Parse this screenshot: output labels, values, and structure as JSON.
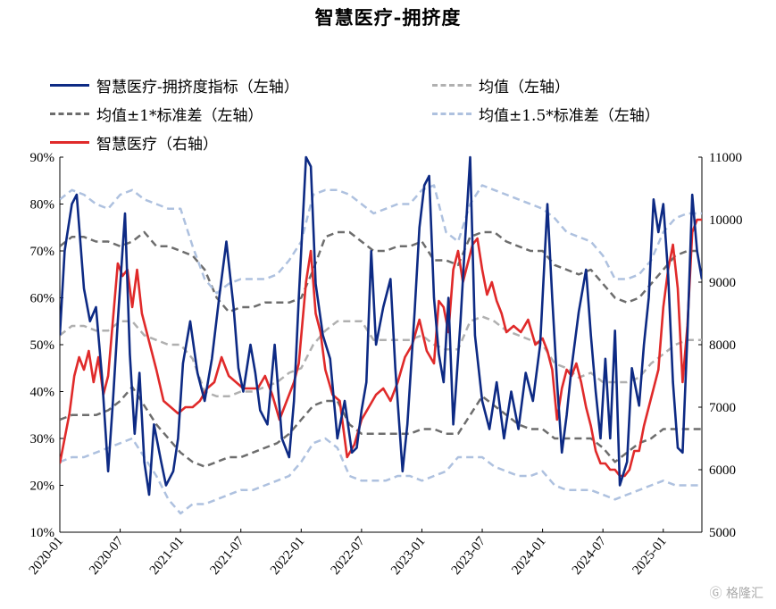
{
  "title": "智慧医疗-拥挤度",
  "watermark": "格隆汇",
  "colors": {
    "index": "#0d2a84",
    "mean": "#b0b0b0",
    "band1": "#6d6d6d",
    "band15": "#aec1df",
    "price": "#e02a2a"
  },
  "legend": [
    {
      "label": "智慧医疗-拥挤度指标（左轴）",
      "color": "#0d2a84",
      "dash": "none",
      "key": "index"
    },
    {
      "label": "均值（左轴）",
      "color": "#b0b0b0",
      "dash": "8,5",
      "key": "mean"
    },
    {
      "label": "均值±1*标准差（左轴）",
      "color": "#6d6d6d",
      "dash": "8,5",
      "key": "band1"
    },
    {
      "label": "均值±1.5*标准差（左轴）",
      "color": "#aec1df",
      "dash": "8,5",
      "key": "band15"
    },
    {
      "label": "智慧医疗（右轴）",
      "color": "#e02a2a",
      "dash": "none",
      "key": "price"
    }
  ],
  "chart_data": {
    "type": "line",
    "title": "智慧医疗-拥挤度",
    "x_tick_labels": [
      "2020-01",
      "2020-07",
      "2021-01",
      "2021-07",
      "2022-01",
      "2022-07",
      "2023-01",
      "2023-07",
      "2024-01",
      "2024-07",
      "2025-01"
    ],
    "y_left": {
      "min": 0.1,
      "max": 0.9,
      "ticks": [
        "90%",
        "80%",
        "70%",
        "60%",
        "50%",
        "40%",
        "30%",
        "20%",
        "10%"
      ]
    },
    "y_right": {
      "min": 5000,
      "max": 11000,
      "ticks": [
        "11000",
        "10000",
        "9000",
        "8000",
        "7000",
        "6000",
        "5000"
      ]
    },
    "grid": false,
    "legend_position": "top",
    "series": [
      {
        "name": "智慧医疗-拥挤度指标（左轴）",
        "axis": "left",
        "style": "solid",
        "x": [
          2020.0,
          2020.04,
          2020.1,
          2020.14,
          2020.2,
          2020.25,
          2020.3,
          2020.35,
          2020.4,
          2020.44,
          2020.48,
          2020.54,
          2020.58,
          2020.62,
          2020.66,
          2020.7,
          2020.74,
          2020.78,
          2020.84,
          2020.88,
          2020.94,
          2020.98,
          2021.02,
          2021.08,
          2021.14,
          2021.2,
          2021.26,
          2021.32,
          2021.38,
          2021.44,
          2021.48,
          2021.52,
          2021.58,
          2021.62,
          2021.66,
          2021.72,
          2021.78,
          2021.84,
          2021.9,
          2021.94,
          2021.98,
          2022.04,
          2022.08,
          2022.12,
          2022.18,
          2022.24,
          2022.3,
          2022.36,
          2022.42,
          2022.46,
          2022.5,
          2022.54,
          2022.58,
          2022.62,
          2022.68,
          2022.74,
          2022.78,
          2022.84,
          2022.88,
          2022.94,
          2022.98,
          2023.02,
          2023.06,
          2023.1,
          2023.14,
          2023.18,
          2023.22,
          2023.26,
          2023.28,
          2023.32,
          2023.36,
          2023.4,
          2023.44,
          2023.5,
          2023.56,
          2023.62,
          2023.68,
          2023.74,
          2023.8,
          2023.86,
          2023.92,
          2023.98,
          2024.04,
          2024.08,
          2024.12,
          2024.16,
          2024.2,
          2024.24,
          2024.3,
          2024.36,
          2024.4,
          2024.44,
          2024.48,
          2024.52,
          2024.56,
          2024.6,
          2024.64,
          2024.7,
          2024.74,
          2024.8,
          2024.84,
          2024.88,
          2024.92,
          2024.96,
          2025.0,
          2025.04,
          2025.08,
          2025.12,
          2025.16,
          2025.2,
          2025.24,
          2025.28,
          2025.32
        ],
        "y": [
          0.52,
          0.7,
          0.8,
          0.82,
          0.62,
          0.55,
          0.58,
          0.43,
          0.23,
          0.38,
          0.55,
          0.78,
          0.48,
          0.31,
          0.44,
          0.25,
          0.18,
          0.33,
          0.25,
          0.2,
          0.23,
          0.3,
          0.46,
          0.55,
          0.44,
          0.38,
          0.47,
          0.6,
          0.72,
          0.58,
          0.45,
          0.4,
          0.5,
          0.44,
          0.36,
          0.33,
          0.5,
          0.3,
          0.26,
          0.38,
          0.6,
          0.9,
          0.88,
          0.63,
          0.52,
          0.47,
          0.3,
          0.38,
          0.27,
          0.28,
          0.36,
          0.42,
          0.7,
          0.5,
          0.58,
          0.64,
          0.45,
          0.23,
          0.33,
          0.57,
          0.75,
          0.84,
          0.86,
          0.6,
          0.48,
          0.42,
          0.6,
          0.33,
          0.4,
          0.55,
          0.73,
          0.9,
          0.52,
          0.38,
          0.32,
          0.42,
          0.3,
          0.4,
          0.32,
          0.44,
          0.38,
          0.5,
          0.8,
          0.6,
          0.42,
          0.27,
          0.35,
          0.45,
          0.57,
          0.66,
          0.52,
          0.4,
          0.3,
          0.47,
          0.3,
          0.53,
          0.2,
          0.25,
          0.45,
          0.37,
          0.5,
          0.6,
          0.81,
          0.74,
          0.8,
          0.65,
          0.42,
          0.28,
          0.27,
          0.52,
          0.82,
          0.7,
          0.64
        ]
      },
      {
        "name": "智慧医疗（右轴）",
        "axis": "right",
        "style": "solid",
        "x": [
          2020.0,
          2020.04,
          2020.08,
          2020.12,
          2020.16,
          2020.2,
          2020.24,
          2020.28,
          2020.32,
          2020.36,
          2020.4,
          2020.44,
          2020.48,
          2020.52,
          2020.56,
          2020.6,
          2020.64,
          2020.68,
          2020.72,
          2020.76,
          2020.8,
          2020.86,
          2020.92,
          2020.98,
          2021.04,
          2021.1,
          2021.16,
          2021.22,
          2021.28,
          2021.34,
          2021.4,
          2021.46,
          2021.52,
          2021.58,
          2021.64,
          2021.7,
          2021.76,
          2021.82,
          2021.88,
          2021.94,
          2021.98,
          2022.04,
          2022.08,
          2022.12,
          2022.16,
          2022.2,
          2022.26,
          2022.32,
          2022.38,
          2022.44,
          2022.5,
          2022.56,
          2022.62,
          2022.68,
          2022.74,
          2022.8,
          2022.86,
          2022.92,
          2022.98,
          2023.04,
          2023.1,
          2023.14,
          2023.18,
          2023.22,
          2023.26,
          2023.3,
          2023.34,
          2023.38,
          2023.42,
          2023.46,
          2023.5,
          2023.54,
          2023.58,
          2023.62,
          2023.66,
          2023.7,
          2023.76,
          2023.82,
          2023.88,
          2023.94,
          2024.0,
          2024.04,
          2024.08,
          2024.12,
          2024.16,
          2024.2,
          2024.24,
          2024.28,
          2024.32,
          2024.36,
          2024.4,
          2024.44,
          2024.48,
          2024.52,
          2024.56,
          2024.6,
          2024.64,
          2024.68,
          2024.72,
          2024.76,
          2024.8,
          2024.84,
          2024.88,
          2024.92,
          2024.96,
          2025.0,
          2025.04,
          2025.08,
          2025.12,
          2025.16,
          2025.2,
          2025.24,
          2025.28,
          2025.32
        ],
        "y": [
          6100,
          6500,
          6900,
          7500,
          7800,
          7600,
          7900,
          7400,
          7800,
          7200,
          7500,
          8400,
          9300,
          9100,
          9200,
          8600,
          9200,
          8500,
          8200,
          7900,
          7600,
          7100,
          7000,
          6900,
          7000,
          7000,
          7100,
          7300,
          7400,
          7800,
          7500,
          7400,
          7300,
          7300,
          7300,
          7500,
          7200,
          6800,
          7100,
          7400,
          7700,
          9000,
          9500,
          8500,
          8200,
          7600,
          7200,
          7100,
          6200,
          6400,
          6800,
          7000,
          7200,
          7300,
          7100,
          7400,
          7800,
          8000,
          8400,
          7900,
          7700,
          8700,
          8600,
          8200,
          9200,
          9500,
          9000,
          9300,
          9600,
          9700,
          9200,
          8800,
          9000,
          8700,
          8500,
          8200,
          8300,
          8200,
          8400,
          8000,
          8100,
          7900,
          7600,
          6800,
          7300,
          7600,
          7500,
          7700,
          7400,
          7000,
          6700,
          6300,
          6100,
          6100,
          6000,
          6000,
          5900,
          5900,
          6000,
          6300,
          6300,
          6700,
          7000,
          7300,
          7600,
          8600,
          9200,
          9600,
          8900,
          7400,
          8300,
          9800,
          10000,
          10000
        ]
      },
      {
        "name": "均值（左轴）",
        "axis": "left",
        "style": "dashed",
        "x": [
          2020.0,
          2020.1,
          2020.2,
          2020.3,
          2020.4,
          2020.5,
          2020.6,
          2020.7,
          2020.8,
          2020.9,
          2021.0,
          2021.1,
          2021.2,
          2021.3,
          2021.4,
          2021.5,
          2021.6,
          2021.7,
          2021.8,
          2021.9,
          2022.0,
          2022.1,
          2022.2,
          2022.3,
          2022.4,
          2022.5,
          2022.6,
          2022.7,
          2022.8,
          2022.9,
          2023.0,
          2023.1,
          2023.2,
          2023.3,
          2023.4,
          2023.5,
          2023.6,
          2023.7,
          2023.8,
          2023.9,
          2024.0,
          2024.1,
          2024.2,
          2024.3,
          2024.4,
          2024.5,
          2024.6,
          2024.7,
          2024.8,
          2024.9,
          2025.0,
          2025.1,
          2025.2,
          2025.32
        ],
        "y": [
          0.52,
          0.54,
          0.54,
          0.53,
          0.53,
          0.55,
          0.55,
          0.52,
          0.51,
          0.5,
          0.5,
          0.47,
          0.4,
          0.39,
          0.39,
          0.4,
          0.4,
          0.41,
          0.42,
          0.44,
          0.45,
          0.5,
          0.53,
          0.55,
          0.55,
          0.55,
          0.51,
          0.51,
          0.51,
          0.51,
          0.52,
          0.5,
          0.49,
          0.49,
          0.55,
          0.56,
          0.55,
          0.53,
          0.52,
          0.51,
          0.5,
          0.46,
          0.45,
          0.43,
          0.44,
          0.42,
          0.42,
          0.42,
          0.43,
          0.46,
          0.48,
          0.5,
          0.51,
          0.51
        ]
      },
      {
        "name": "均值+1*标准差（左轴）",
        "axis": "left",
        "style": "dashed",
        "x": [
          2020.0,
          2020.1,
          2020.2,
          2020.3,
          2020.4,
          2020.5,
          2020.6,
          2020.7,
          2020.8,
          2020.9,
          2021.0,
          2021.1,
          2021.2,
          2021.3,
          2021.4,
          2021.5,
          2021.6,
          2021.7,
          2021.8,
          2021.9,
          2022.0,
          2022.1,
          2022.2,
          2022.3,
          2022.4,
          2022.5,
          2022.6,
          2022.7,
          2022.8,
          2022.9,
          2023.0,
          2023.1,
          2023.2,
          2023.3,
          2023.4,
          2023.5,
          2023.6,
          2023.7,
          2023.8,
          2023.9,
          2024.0,
          2024.1,
          2024.2,
          2024.3,
          2024.4,
          2024.5,
          2024.6,
          2024.7,
          2024.8,
          2024.9,
          2025.0,
          2025.1,
          2025.2,
          2025.32
        ],
        "y": [
          0.71,
          0.73,
          0.73,
          0.72,
          0.72,
          0.71,
          0.72,
          0.74,
          0.71,
          0.71,
          0.7,
          0.69,
          0.66,
          0.6,
          0.57,
          0.58,
          0.58,
          0.59,
          0.59,
          0.59,
          0.6,
          0.66,
          0.73,
          0.74,
          0.74,
          0.72,
          0.7,
          0.7,
          0.71,
          0.71,
          0.72,
          0.68,
          0.68,
          0.67,
          0.73,
          0.74,
          0.74,
          0.72,
          0.71,
          0.7,
          0.7,
          0.67,
          0.66,
          0.65,
          0.66,
          0.63,
          0.6,
          0.59,
          0.6,
          0.63,
          0.66,
          0.69,
          0.7,
          0.7
        ]
      },
      {
        "name": "均值-1*标准差（左轴）",
        "axis": "left",
        "style": "dashed",
        "x": [
          2020.0,
          2020.1,
          2020.2,
          2020.3,
          2020.4,
          2020.5,
          2020.6,
          2020.7,
          2020.8,
          2020.9,
          2021.0,
          2021.1,
          2021.2,
          2021.3,
          2021.4,
          2021.5,
          2021.6,
          2021.7,
          2021.8,
          2021.9,
          2022.0,
          2022.1,
          2022.2,
          2022.3,
          2022.4,
          2022.5,
          2022.6,
          2022.7,
          2022.8,
          2022.9,
          2023.0,
          2023.1,
          2023.2,
          2023.3,
          2023.4,
          2023.5,
          2023.6,
          2023.7,
          2023.8,
          2023.9,
          2024.0,
          2024.1,
          2024.2,
          2024.3,
          2024.4,
          2024.5,
          2024.6,
          2024.7,
          2024.8,
          2024.9,
          2025.0,
          2025.1,
          2025.2,
          2025.32
        ],
        "y": [
          0.34,
          0.35,
          0.35,
          0.35,
          0.36,
          0.38,
          0.41,
          0.37,
          0.33,
          0.3,
          0.27,
          0.25,
          0.24,
          0.25,
          0.26,
          0.26,
          0.27,
          0.28,
          0.29,
          0.31,
          0.34,
          0.37,
          0.38,
          0.38,
          0.33,
          0.31,
          0.31,
          0.31,
          0.31,
          0.31,
          0.32,
          0.32,
          0.31,
          0.31,
          0.35,
          0.39,
          0.37,
          0.35,
          0.33,
          0.32,
          0.32,
          0.3,
          0.3,
          0.3,
          0.3,
          0.28,
          0.25,
          0.27,
          0.29,
          0.3,
          0.32,
          0.32,
          0.32,
          0.32
        ]
      },
      {
        "name": "均值+1.5*标准差（左轴）",
        "axis": "left",
        "style": "dashed",
        "x": [
          2020.0,
          2020.1,
          2020.2,
          2020.3,
          2020.4,
          2020.5,
          2020.6,
          2020.7,
          2020.8,
          2020.9,
          2021.0,
          2021.1,
          2021.2,
          2021.3,
          2021.4,
          2021.5,
          2021.6,
          2021.7,
          2021.8,
          2021.9,
          2022.0,
          2022.1,
          2022.2,
          2022.3,
          2022.4,
          2022.5,
          2022.6,
          2022.7,
          2022.8,
          2022.9,
          2023.0,
          2023.1,
          2023.2,
          2023.3,
          2023.4,
          2023.5,
          2023.6,
          2023.7,
          2023.8,
          2023.9,
          2024.0,
          2024.1,
          2024.2,
          2024.3,
          2024.4,
          2024.5,
          2024.6,
          2024.7,
          2024.8,
          2024.9,
          2025.0,
          2025.1,
          2025.2,
          2025.32
        ],
        "y": [
          0.81,
          0.83,
          0.82,
          0.8,
          0.79,
          0.82,
          0.83,
          0.81,
          0.8,
          0.79,
          0.79,
          0.71,
          0.64,
          0.61,
          0.63,
          0.64,
          0.64,
          0.64,
          0.65,
          0.68,
          0.72,
          0.82,
          0.83,
          0.83,
          0.82,
          0.8,
          0.78,
          0.79,
          0.8,
          0.8,
          0.83,
          0.84,
          0.74,
          0.72,
          0.8,
          0.84,
          0.83,
          0.82,
          0.81,
          0.8,
          0.79,
          0.77,
          0.74,
          0.73,
          0.72,
          0.69,
          0.64,
          0.64,
          0.65,
          0.68,
          0.74,
          0.77,
          0.78,
          0.78
        ]
      },
      {
        "name": "均值-1.5*标准差（左轴）",
        "axis": "left",
        "style": "dashed",
        "x": [
          2020.0,
          2020.1,
          2020.2,
          2020.3,
          2020.4,
          2020.5,
          2020.6,
          2020.7,
          2020.8,
          2020.9,
          2021.0,
          2021.1,
          2021.2,
          2021.3,
          2021.4,
          2021.5,
          2021.6,
          2021.7,
          2021.8,
          2021.9,
          2022.0,
          2022.1,
          2022.2,
          2022.3,
          2022.4,
          2022.5,
          2022.6,
          2022.7,
          2022.8,
          2022.9,
          2023.0,
          2023.1,
          2023.2,
          2023.3,
          2023.4,
          2023.5,
          2023.6,
          2023.7,
          2023.8,
          2023.9,
          2024.0,
          2024.1,
          2024.2,
          2024.3,
          2024.4,
          2024.5,
          2024.6,
          2024.7,
          2024.8,
          2024.9,
          2025.0,
          2025.1,
          2025.2,
          2025.32
        ],
        "y": [
          0.25,
          0.26,
          0.26,
          0.27,
          0.28,
          0.29,
          0.3,
          0.26,
          0.22,
          0.17,
          0.14,
          0.16,
          0.16,
          0.17,
          0.18,
          0.19,
          0.19,
          0.2,
          0.21,
          0.22,
          0.25,
          0.29,
          0.3,
          0.28,
          0.22,
          0.21,
          0.21,
          0.21,
          0.22,
          0.22,
          0.21,
          0.22,
          0.23,
          0.26,
          0.26,
          0.26,
          0.24,
          0.23,
          0.22,
          0.22,
          0.23,
          0.2,
          0.19,
          0.19,
          0.19,
          0.18,
          0.17,
          0.18,
          0.19,
          0.2,
          0.21,
          0.2,
          0.2,
          0.2
        ]
      }
    ]
  }
}
